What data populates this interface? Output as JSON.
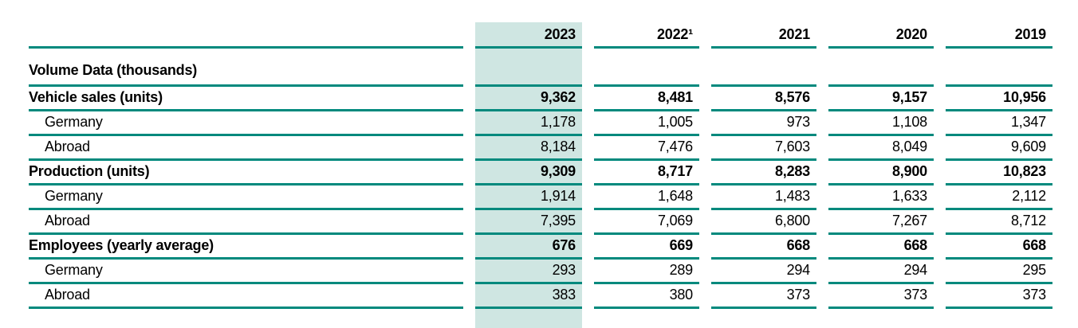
{
  "colors": {
    "rule_line": "#00897d",
    "highlight_background": "#cfe6e2",
    "text": "#000000"
  },
  "table": {
    "title_semantic": "Volume Data five-year overview",
    "header": {
      "years": [
        "2023",
        "2022¹",
        "2021",
        "2020",
        "2019"
      ],
      "highlighted_year": "2023",
      "footnote_marker_on": "2022¹"
    },
    "rows": [
      {
        "label": "Volume Data (thousands)",
        "style": "section",
        "values": [
          "",
          "",
          "",
          "",
          ""
        ]
      },
      {
        "label": "Vehicle sales (units)",
        "style": "bold",
        "values": [
          "9,362",
          "8,481",
          "8,576",
          "9,157",
          "10,956"
        ]
      },
      {
        "label": "Germany",
        "style": "sub",
        "values": [
          "1,178",
          "1,005",
          "973",
          "1,108",
          "1,347"
        ]
      },
      {
        "label": "Abroad",
        "style": "sub",
        "values": [
          "8,184",
          "7,476",
          "7,603",
          "8,049",
          "9,609"
        ]
      },
      {
        "label": "Production (units)",
        "style": "bold",
        "values": [
          "9,309",
          "8,717",
          "8,283",
          "8,900",
          "10,823"
        ]
      },
      {
        "label": "Germany",
        "style": "sub",
        "values": [
          "1,914",
          "1,648",
          "1,483",
          "1,633",
          "2,112"
        ]
      },
      {
        "label": "Abroad",
        "style": "sub",
        "values": [
          "7,395",
          "7,069",
          "6,800",
          "7,267",
          "8,712"
        ]
      },
      {
        "label": "Employees (yearly average)",
        "style": "bold",
        "values": [
          "676",
          "669",
          "668",
          "668",
          "668"
        ]
      },
      {
        "label": "Germany",
        "style": "sub",
        "values": [
          "293",
          "289",
          "294",
          "294",
          "295"
        ]
      },
      {
        "label": "Abroad",
        "style": "sub",
        "values": [
          "383",
          "380",
          "373",
          "373",
          "373"
        ]
      }
    ]
  }
}
